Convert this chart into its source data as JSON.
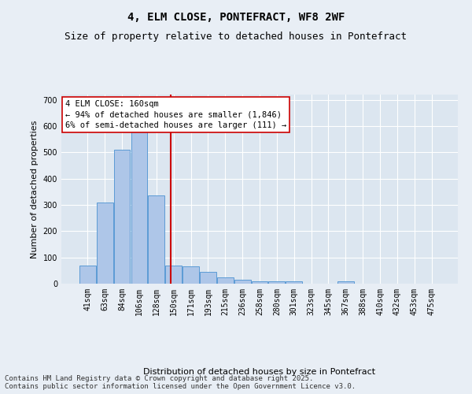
{
  "title": "4, ELM CLOSE, PONTEFRACT, WF8 2WF",
  "subtitle": "Size of property relative to detached houses in Pontefract",
  "xlabel": "Distribution of detached houses by size in Pontefract",
  "ylabel": "Number of detached properties",
  "categories": [
    "41sqm",
    "63sqm",
    "84sqm",
    "106sqm",
    "128sqm",
    "150sqm",
    "171sqm",
    "193sqm",
    "215sqm",
    "236sqm",
    "258sqm",
    "280sqm",
    "301sqm",
    "323sqm",
    "345sqm",
    "367sqm",
    "388sqm",
    "410sqm",
    "432sqm",
    "453sqm",
    "475sqm"
  ],
  "values": [
    70,
    310,
    510,
    580,
    335,
    70,
    65,
    45,
    25,
    15,
    10,
    10,
    10,
    0,
    0,
    10,
    0,
    0,
    0,
    0,
    0
  ],
  "bar_color": "#aec6e8",
  "bar_edge_color": "#5b9bd5",
  "vline_color": "#cc0000",
  "annotation_line1": "4 ELM CLOSE: 160sqm",
  "annotation_line2": "← 94% of detached houses are smaller (1,846)",
  "annotation_line3": "6% of semi-detached houses are larger (111) →",
  "annotation_box_color": "#ffffff",
  "annotation_box_edge_color": "#cc0000",
  "ylim": [
    0,
    720
  ],
  "yticks": [
    0,
    100,
    200,
    300,
    400,
    500,
    600,
    700
  ],
  "background_color": "#e8eef5",
  "plot_bg_color": "#dce6f0",
  "grid_color": "#ffffff",
  "footer_text": "Contains HM Land Registry data © Crown copyright and database right 2025.\nContains public sector information licensed under the Open Government Licence v3.0.",
  "title_fontsize": 10,
  "subtitle_fontsize": 9,
  "xlabel_fontsize": 8,
  "ylabel_fontsize": 8,
  "tick_fontsize": 7,
  "annotation_fontsize": 7.5,
  "footer_fontsize": 6.5,
  "vline_pos": 4.85
}
